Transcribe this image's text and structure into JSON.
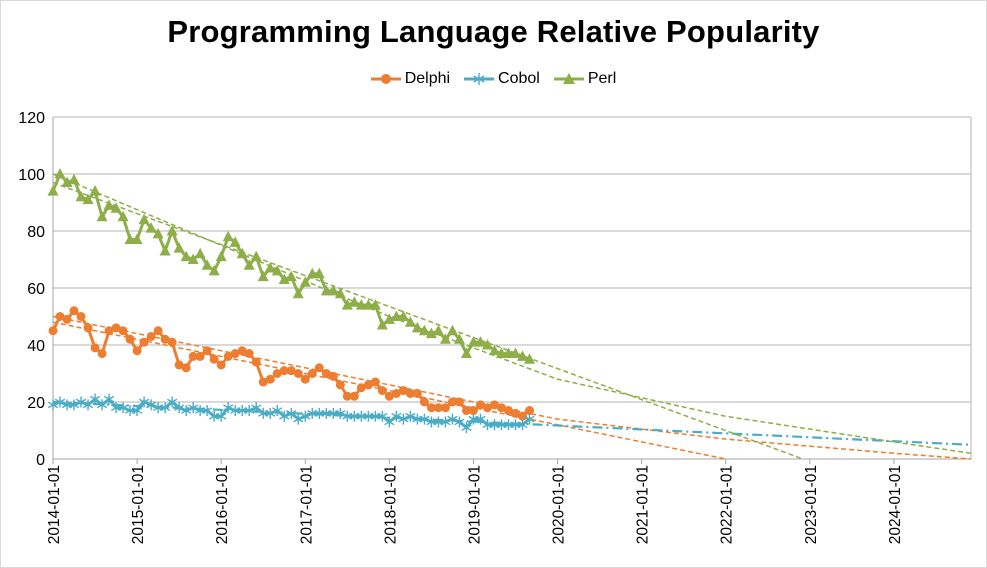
{
  "title": "Programming Language Relative Popularity",
  "chart_data": {
    "type": "line",
    "title": "Programming Language Relative Popularity",
    "xlabel": "",
    "ylabel": "",
    "ylim": [
      0,
      120
    ],
    "yticks": [
      "0",
      "20",
      "40",
      "60",
      "80",
      "100",
      "120"
    ],
    "xlim": [
      "2014-01-01",
      "2024-12-01"
    ],
    "xticks": [
      "2014-01-01",
      "2015-01-01",
      "2016-01-01",
      "2017-01-01",
      "2018-01-01",
      "2019-01-01",
      "2020-01-01",
      "2021-01-01",
      "2022-01-01",
      "2023-01-01",
      "2024-01-01"
    ],
    "grid": true,
    "legend": "top-center",
    "series": [
      {
        "name": "Delphi",
        "color": "#ED7D31",
        "marker": "circle",
        "start": "2014-01-01",
        "values": [
          45,
          50,
          49,
          52,
          50,
          46,
          39,
          37,
          45,
          46,
          45,
          42,
          38,
          41,
          43,
          45,
          42,
          41,
          33,
          32,
          36,
          36,
          38,
          35,
          33,
          36,
          37,
          38,
          37,
          34,
          27,
          28,
          30,
          31,
          31,
          30,
          28,
          30,
          32,
          30,
          29,
          26,
          22,
          22,
          25,
          26,
          27,
          24,
          22,
          23,
          24,
          23,
          23,
          20,
          18,
          18,
          18,
          20,
          20,
          17,
          17,
          19,
          18,
          19,
          18,
          17,
          16,
          15,
          17
        ]
      },
      {
        "name": "Cobol",
        "color": "#4BACC6",
        "marker": "star",
        "start": "2014-01-01",
        "values": [
          19,
          20,
          19,
          19,
          20,
          19,
          21,
          19,
          21,
          18,
          18,
          17,
          17,
          20,
          19,
          18,
          18,
          20,
          18,
          17,
          18,
          17,
          17,
          15,
          15,
          18,
          17,
          17,
          17,
          18,
          16,
          16,
          17,
          15,
          16,
          14,
          15,
          16,
          16,
          16,
          16,
          16,
          15,
          15,
          15,
          15,
          15,
          15,
          13,
          15,
          14,
          15,
          14,
          14,
          13,
          13,
          13,
          14,
          13,
          11,
          14,
          14,
          12,
          12,
          12,
          12,
          12,
          12,
          14
        ]
      },
      {
        "name": "Perl",
        "color": "#8DAE48",
        "marker": "triangle",
        "start": "2014-01-01",
        "values": [
          94,
          100,
          97,
          98,
          92,
          91,
          94,
          85,
          89,
          88,
          85,
          77,
          77,
          84,
          81,
          79,
          73,
          80,
          74,
          71,
          70,
          72,
          68,
          66,
          71,
          78,
          76,
          72,
          68,
          71,
          64,
          67,
          66,
          63,
          64,
          58,
          62,
          65,
          65,
          59,
          59,
          58,
          54,
          55,
          54,
          54,
          54,
          47,
          49,
          50,
          50,
          48,
          46,
          45,
          44,
          45,
          42,
          45,
          42,
          37,
          41,
          41,
          40,
          38,
          37,
          37,
          37,
          36,
          35
        ]
      }
    ],
    "trendlines": [
      {
        "series": "Delphi",
        "kind": "linear",
        "color": "#ED7D31",
        "points": [
          [
            "2014-01-01",
            48
          ],
          [
            "2022-01-01",
            0
          ]
        ]
      },
      {
        "series": "Delphi",
        "kind": "curved",
        "color": "#ED7D31",
        "points": [
          [
            "2014-01-01",
            50
          ],
          [
            "2016-01-01",
            38
          ],
          [
            "2018-01-01",
            26
          ],
          [
            "2020-01-01",
            14
          ],
          [
            "2022-01-01",
            7
          ],
          [
            "2024-01-01",
            2
          ],
          [
            "2024-12-01",
            0
          ]
        ]
      },
      {
        "series": "Cobol",
        "kind": "linear",
        "color": "#4BACC6",
        "points": [
          [
            "2014-01-01",
            20
          ],
          [
            "2024-12-01",
            5
          ]
        ]
      },
      {
        "series": "Perl",
        "kind": "linear",
        "color": "#8DAE48",
        "points": [
          [
            "2014-01-01",
            97
          ],
          [
            "2022-12-01",
            0
          ]
        ]
      },
      {
        "series": "Perl",
        "kind": "curved",
        "color": "#8DAE48",
        "points": [
          [
            "2014-01-01",
            100
          ],
          [
            "2016-01-01",
            75
          ],
          [
            "2018-01-01",
            50
          ],
          [
            "2020-01-01",
            28
          ],
          [
            "2022-01-01",
            15
          ],
          [
            "2024-01-01",
            6
          ],
          [
            "2024-12-01",
            2
          ]
        ]
      }
    ]
  }
}
